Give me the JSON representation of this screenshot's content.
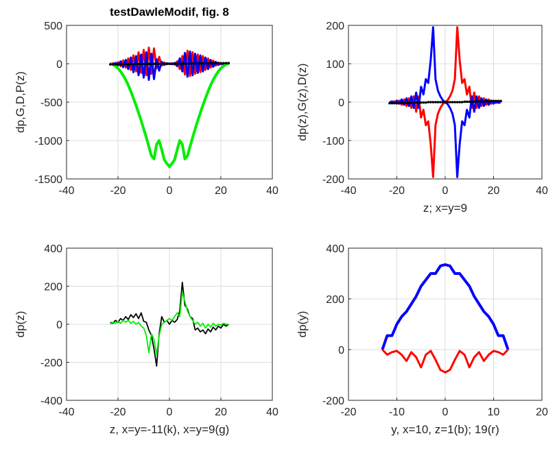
{
  "figure": {
    "colors": {
      "black": "#000000",
      "blue": "#0000ff",
      "red": "#ff0000",
      "green": "#00ee00",
      "axes": "#262626",
      "grid": "#dcdcdc"
    }
  },
  "chart_data": [
    {
      "type": "line",
      "title": "testDawleModif, fig. 8",
      "xlabel": "",
      "ylabel": "dp,G,D,P(z)",
      "xlim": [
        -40,
        40
      ],
      "ylim": [
        -1500,
        500
      ],
      "xticks": [
        "-40",
        "-20",
        "0",
        "20",
        "40"
      ],
      "yticks": [
        "500",
        "0",
        "-500",
        "-1000",
        "-1500"
      ],
      "grid": true,
      "series": [
        {
          "color": "red",
          "width": 3,
          "x": [
            -23,
            -22,
            -21,
            -20,
            -19,
            -18,
            -17,
            -16,
            -15,
            -14,
            -13,
            -12,
            -11,
            -10,
            -9,
            -8,
            -7,
            -6,
            -5,
            -4,
            -3,
            -2,
            -1,
            0,
            1,
            2,
            3,
            4,
            5,
            6,
            7,
            8,
            9,
            10,
            11,
            12,
            13,
            14,
            15,
            16,
            17,
            18,
            19,
            20,
            21,
            22,
            23
          ],
          "y": [
            0,
            5,
            -10,
            20,
            -30,
            45,
            -50,
            70,
            -80,
            110,
            -100,
            150,
            -120,
            180,
            -150,
            210,
            -130,
            200,
            -60,
            90,
            -25,
            15,
            -5,
            0,
            5,
            -10,
            30,
            -70,
            100,
            -140,
            170,
            -160,
            150,
            -130,
            120,
            -110,
            100,
            -80,
            70,
            -50,
            40,
            -25,
            15,
            -8,
            5,
            0,
            0
          ]
        },
        {
          "color": "blue",
          "width": 3,
          "x": [
            -23,
            -22,
            -21,
            -20,
            -19,
            -18,
            -17,
            -16,
            -15,
            -14,
            -13,
            -12,
            -11,
            -10,
            -9,
            -8,
            -7,
            -6,
            -5,
            -4,
            -3,
            -2,
            -1,
            0,
            1,
            2,
            3,
            4,
            5,
            6,
            7,
            8,
            9,
            10,
            11,
            12,
            13,
            14,
            15,
            16,
            17,
            18,
            19,
            20,
            21,
            22,
            23
          ],
          "y": [
            0,
            -5,
            10,
            -20,
            30,
            -45,
            50,
            -70,
            80,
            -110,
            100,
            -150,
            120,
            -180,
            150,
            -210,
            130,
            -200,
            60,
            -90,
            25,
            -15,
            5,
            0,
            -5,
            10,
            -30,
            70,
            -100,
            140,
            -170,
            160,
            -150,
            130,
            -120,
            110,
            -100,
            80,
            -70,
            50,
            -40,
            25,
            -15,
            8,
            -5,
            0,
            0
          ]
        },
        {
          "color": "green",
          "width": 4,
          "x": [
            -23,
            -22,
            -21,
            -20,
            -19,
            -18,
            -17,
            -16,
            -15,
            -14,
            -13,
            -12,
            -11,
            -10,
            -9,
            -8,
            -7,
            -6,
            -5,
            -4,
            -3,
            -2,
            -1,
            0,
            1,
            2,
            3,
            4,
            5,
            6,
            7,
            8,
            9,
            10,
            11,
            12,
            13,
            14,
            15,
            16,
            17,
            18,
            19,
            20,
            21,
            22,
            23
          ],
          "y": [
            0,
            -10,
            -30,
            -60,
            -100,
            -150,
            -210,
            -280,
            -360,
            -450,
            -540,
            -640,
            -740,
            -850,
            -960,
            -1080,
            -1200,
            -1240,
            -1050,
            -1000,
            -1120,
            -1250,
            -1300,
            -1340,
            -1300,
            -1250,
            -1120,
            -1000,
            -1050,
            -1240,
            -1200,
            -1080,
            -960,
            -850,
            -740,
            -640,
            -540,
            -450,
            -360,
            -280,
            -210,
            -150,
            -100,
            -60,
            -30,
            -10,
            0
          ]
        },
        {
          "color": "black",
          "width": 1.5,
          "markers": true,
          "x": [
            -23,
            -22,
            -21,
            -20,
            -19,
            -18,
            -17,
            -16,
            -15,
            -14,
            -13,
            -12,
            -11,
            -10,
            -9,
            -8,
            -7,
            -6,
            -5,
            -4,
            -3,
            -2,
            -1,
            0,
            1,
            2,
            3,
            4,
            5,
            6,
            7,
            8,
            9,
            10,
            11,
            12,
            13,
            14,
            15,
            16,
            17,
            18,
            19,
            20,
            21,
            22,
            23
          ],
          "y": [
            -8,
            -8,
            -7,
            -7,
            -7,
            -6,
            -6,
            -6,
            -5,
            -5,
            -4,
            -4,
            -3,
            -3,
            -3,
            -2,
            -2,
            -1,
            -1,
            -1,
            0,
            0,
            0,
            0,
            0,
            0,
            0,
            1,
            1,
            1,
            2,
            2,
            3,
            3,
            3,
            4,
            4,
            5,
            5,
            6,
            6,
            6,
            7,
            7,
            7,
            8,
            8
          ]
        }
      ]
    },
    {
      "type": "line",
      "title": "",
      "xlabel": "z; x=y=9",
      "ylabel": "dp(z),G(z),D(z)",
      "xlim": [
        -40,
        40
      ],
      "ylim": [
        -200,
        200
      ],
      "xticks": [
        "-40",
        "-20",
        "0",
        "20",
        "40"
      ],
      "yticks": [
        "200",
        "100",
        "0",
        "-100",
        "-200"
      ],
      "grid": true,
      "series": [
        {
          "color": "red",
          "width": 3,
          "x": [
            -23,
            -22,
            -21,
            -20,
            -19,
            -18,
            -17,
            -16,
            -15,
            -14,
            -13,
            -12,
            -11,
            -10,
            -9,
            -8,
            -7,
            -6,
            -5,
            -4,
            -3,
            -2,
            -1,
            0,
            1,
            2,
            3,
            4,
            5,
            6,
            7,
            8,
            9,
            10,
            11,
            12,
            13,
            14,
            15,
            16,
            17,
            18,
            19,
            20,
            21,
            22,
            23
          ],
          "y": [
            0,
            -2,
            2,
            -4,
            4,
            -7,
            7,
            -10,
            10,
            -15,
            15,
            -25,
            15,
            -40,
            -20,
            -60,
            -50,
            -110,
            -195,
            -60,
            -30,
            -15,
            -5,
            0,
            5,
            15,
            30,
            60,
            195,
            110,
            50,
            60,
            20,
            40,
            -15,
            25,
            -15,
            15,
            -10,
            10,
            -7,
            7,
            -4,
            4,
            -2,
            2,
            0
          ]
        },
        {
          "color": "blue",
          "width": 3,
          "x": [
            -23,
            -22,
            -21,
            -20,
            -19,
            -18,
            -17,
            -16,
            -15,
            -14,
            -13,
            -12,
            -11,
            -10,
            -9,
            -8,
            -7,
            -6,
            -5,
            -4,
            -3,
            -2,
            -1,
            0,
            1,
            2,
            3,
            4,
            5,
            6,
            7,
            8,
            9,
            10,
            11,
            12,
            13,
            14,
            15,
            16,
            17,
            18,
            19,
            20,
            21,
            22,
            23
          ],
          "y": [
            0,
            2,
            -2,
            4,
            -4,
            7,
            -7,
            10,
            -10,
            15,
            -15,
            25,
            -15,
            40,
            20,
            60,
            50,
            110,
            195,
            60,
            30,
            15,
            5,
            0,
            -5,
            -15,
            -30,
            -60,
            -195,
            -110,
            -50,
            -60,
            -20,
            -40,
            15,
            -25,
            15,
            -15,
            10,
            -10,
            7,
            -7,
            4,
            -4,
            2,
            -2,
            0
          ]
        },
        {
          "color": "black",
          "width": 1.5,
          "markers": true,
          "x": [
            -23,
            -22,
            -21,
            -20,
            -19,
            -18,
            -17,
            -16,
            -15,
            -14,
            -13,
            -12,
            -11,
            -10,
            -9,
            -8,
            -7,
            -6,
            -5,
            -4,
            -3,
            -2,
            -1,
            0,
            1,
            2,
            3,
            4,
            5,
            6,
            7,
            8,
            9,
            10,
            11,
            12,
            13,
            14,
            15,
            16,
            17,
            18,
            19,
            20,
            21,
            22,
            23
          ],
          "y": [
            -3,
            -3,
            -3,
            -3,
            -3,
            -2,
            -2,
            -2,
            -2,
            -2,
            -2,
            -1,
            -1,
            -1,
            -1,
            -1,
            0,
            0,
            0,
            0,
            0,
            0,
            0,
            0,
            0,
            0,
            0,
            0,
            0,
            0,
            0,
            1,
            1,
            1,
            1,
            1,
            2,
            2,
            2,
            2,
            2,
            2,
            3,
            3,
            3,
            3,
            3
          ]
        }
      ]
    },
    {
      "type": "line",
      "title": "",
      "xlabel": "z, x=y=-11(k), x=y=9(g)",
      "ylabel": "dp(z)",
      "xlim": [
        -40,
        40
      ],
      "ylim": [
        -400,
        400
      ],
      "xticks": [
        "-40",
        "-20",
        "0",
        "20",
        "40"
      ],
      "yticks": [
        "400",
        "200",
        "0",
        "-200",
        "-400"
      ],
      "grid": true,
      "series": [
        {
          "color": "black",
          "width": 1.8,
          "x": [
            -23,
            -22,
            -21,
            -20,
            -19,
            -18,
            -17,
            -16,
            -15,
            -14,
            -13,
            -12,
            -11,
            -10,
            -9,
            -8,
            -7,
            -6,
            -5,
            -4,
            -3,
            -2,
            -1,
            0,
            1,
            2,
            3,
            4,
            5,
            6,
            7,
            8,
            9,
            10,
            11,
            12,
            13,
            14,
            15,
            16,
            17,
            18,
            19,
            20,
            21,
            22,
            23
          ],
          "y": [
            10,
            5,
            20,
            10,
            30,
            20,
            40,
            25,
            50,
            35,
            55,
            30,
            60,
            15,
            10,
            -30,
            -60,
            -130,
            -220,
            -50,
            40,
            10,
            20,
            0,
            20,
            10,
            25,
            70,
            220,
            100,
            80,
            40,
            30,
            -30,
            -20,
            -40,
            -30,
            -50,
            -25,
            -40,
            -15,
            -30,
            -10,
            -20,
            0,
            -10,
            0
          ]
        },
        {
          "color": "green",
          "width": 1.8,
          "x": [
            -23,
            -22,
            -21,
            -20,
            -19,
            -18,
            -17,
            -16,
            -15,
            -14,
            -13,
            -12,
            -11,
            -10,
            -9,
            -8,
            -7,
            -6,
            -5,
            -4,
            -3,
            -2,
            -1,
            0,
            1,
            2,
            3,
            4,
            5,
            6,
            7,
            8,
            9,
            10,
            11,
            12,
            13,
            14,
            15,
            16,
            17,
            18,
            19,
            20,
            21,
            22,
            23
          ],
          "y": [
            0,
            10,
            5,
            15,
            5,
            20,
            10,
            20,
            5,
            15,
            0,
            10,
            -10,
            -20,
            -60,
            -150,
            -50,
            -80,
            -160,
            -60,
            0,
            10,
            20,
            30,
            20,
            40,
            60,
            40,
            170,
            120,
            70,
            40,
            20,
            0,
            10,
            -10,
            5,
            -20,
            0,
            -15,
            5,
            -10,
            0,
            -5,
            5,
            0,
            0
          ]
        }
      ]
    },
    {
      "type": "line",
      "title": "",
      "xlabel": "y, x=10, z=1(b); 19(r)",
      "ylabel": "dp(y)",
      "xlim": [
        -20,
        20
      ],
      "ylim": [
        -200,
        400
      ],
      "xticks": [
        "-20",
        "-10",
        "0",
        "10",
        "20"
      ],
      "yticks": [
        "400",
        "200",
        "0",
        "-200"
      ],
      "grid": true,
      "series": [
        {
          "color": "blue",
          "width": 4,
          "x": [
            -13,
            -12,
            -11,
            -10,
            -9,
            -8,
            -7,
            -6,
            -5,
            -4,
            -3,
            -2,
            -1,
            0,
            1,
            2,
            3,
            4,
            5,
            6,
            7,
            8,
            9,
            10,
            11,
            12,
            13
          ],
          "y": [
            0,
            55,
            55,
            100,
            130,
            150,
            180,
            210,
            250,
            275,
            300,
            300,
            330,
            335,
            330,
            300,
            300,
            275,
            250,
            210,
            180,
            150,
            130,
            100,
            55,
            55,
            0
          ]
        },
        {
          "color": "red",
          "width": 3,
          "x": [
            -13,
            -12,
            -11,
            -10,
            -9,
            -8,
            -7,
            -6,
            -5,
            -4,
            -3,
            -2,
            -1,
            0,
            1,
            2,
            3,
            4,
            5,
            6,
            7,
            8,
            9,
            10,
            11,
            12,
            13
          ],
          "y": [
            0,
            -20,
            -10,
            -5,
            -20,
            -45,
            -10,
            -30,
            -70,
            -20,
            -5,
            -40,
            -80,
            -90,
            -80,
            -40,
            -5,
            -20,
            -70,
            -30,
            -10,
            -45,
            -20,
            -5,
            -10,
            -20,
            0
          ]
        }
      ]
    }
  ]
}
